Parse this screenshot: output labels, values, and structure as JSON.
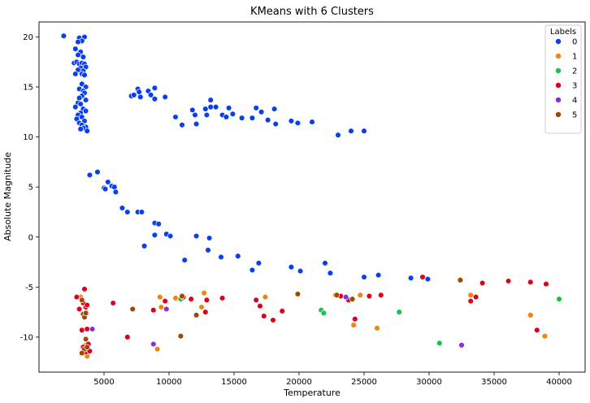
{
  "chart_data": {
    "type": "scatter",
    "title": "KMeans with 6 Clusters",
    "xlabel": "Temperature",
    "ylabel": "Absolute Magnitude",
    "xlim": [
      0,
      42000
    ],
    "ylim": [
      -13.5,
      21.5
    ],
    "xticks": [
      5000,
      10000,
      15000,
      20000,
      25000,
      30000,
      35000,
      40000
    ],
    "yticks": [
      -10,
      -5,
      0,
      5,
      10,
      15,
      20
    ],
    "grid": false,
    "legend": {
      "title": "Labels",
      "placement": "top-right"
    },
    "series": [
      {
        "name": "0",
        "color": "#0a3ff0",
        "points": [
          [
            1900,
            20.1
          ],
          [
            3100,
            19.9
          ],
          [
            3500,
            20.0
          ],
          [
            3300,
            19.6
          ],
          [
            3000,
            19.5
          ],
          [
            2800,
            18.8
          ],
          [
            3200,
            18.5
          ],
          [
            3000,
            18.2
          ],
          [
            3400,
            18.0
          ],
          [
            2700,
            17.4
          ],
          [
            2900,
            17.5
          ],
          [
            3100,
            17.3
          ],
          [
            3300,
            17.4
          ],
          [
            3500,
            17.3
          ],
          [
            3600,
            17.0
          ],
          [
            3200,
            16.9
          ],
          [
            3000,
            16.7
          ],
          [
            3400,
            16.6
          ],
          [
            2800,
            16.3
          ],
          [
            3300,
            16.3
          ],
          [
            3500,
            16.2
          ],
          [
            3300,
            15.3
          ],
          [
            3600,
            15.0
          ],
          [
            3100,
            14.8
          ],
          [
            3400,
            14.6
          ],
          [
            3500,
            14.4
          ],
          [
            3300,
            14.1
          ],
          [
            3100,
            13.9
          ],
          [
            3600,
            13.7
          ],
          [
            3000,
            13.4
          ],
          [
            3200,
            13.3
          ],
          [
            2800,
            13.0
          ],
          [
            3400,
            12.8
          ],
          [
            3600,
            12.6
          ],
          [
            3200,
            12.4
          ],
          [
            3000,
            12.2
          ],
          [
            3300,
            12.0
          ],
          [
            2900,
            11.8
          ],
          [
            3500,
            11.6
          ],
          [
            3100,
            11.4
          ],
          [
            3300,
            11.2
          ],
          [
            3600,
            11.0
          ],
          [
            3400,
            10.9
          ],
          [
            3200,
            10.8
          ],
          [
            3700,
            10.6
          ],
          [
            7100,
            14.1
          ],
          [
            7300,
            14.2
          ],
          [
            7600,
            14.8
          ],
          [
            7700,
            14.5
          ],
          [
            7800,
            14.0
          ],
          [
            8400,
            14.6
          ],
          [
            8600,
            14.2
          ],
          [
            8900,
            14.9
          ],
          [
            8900,
            13.8
          ],
          [
            9700,
            14.0
          ],
          [
            10500,
            12.0
          ],
          [
            11000,
            11.2
          ],
          [
            11800,
            12.7
          ],
          [
            12000,
            12.2
          ],
          [
            12100,
            11.3
          ],
          [
            12800,
            12.8
          ],
          [
            12900,
            12.2
          ],
          [
            13200,
            13.0
          ],
          [
            13200,
            13.7
          ],
          [
            13600,
            13.0
          ],
          [
            14100,
            12.2
          ],
          [
            14400,
            12.0
          ],
          [
            14600,
            12.9
          ],
          [
            14900,
            12.3
          ],
          [
            15600,
            11.9
          ],
          [
            16400,
            11.9
          ],
          [
            16700,
            12.9
          ],
          [
            17100,
            12.5
          ],
          [
            17600,
            11.7
          ],
          [
            18100,
            12.8
          ],
          [
            18200,
            11.3
          ],
          [
            19400,
            11.6
          ],
          [
            19900,
            11.4
          ],
          [
            21000,
            11.5
          ],
          [
            23000,
            10.2
          ],
          [
            24000,
            10.6
          ],
          [
            25000,
            10.6
          ],
          [
            3900,
            6.2
          ],
          [
            4500,
            6.5
          ],
          [
            5000,
            4.9
          ],
          [
            5100,
            4.8
          ],
          [
            5300,
            5.5
          ],
          [
            5600,
            5.1
          ],
          [
            5800,
            5.0
          ],
          [
            5900,
            4.5
          ],
          [
            6400,
            2.9
          ],
          [
            6800,
            2.5
          ],
          [
            7600,
            2.5
          ],
          [
            7900,
            2.5
          ],
          [
            8100,
            -0.9
          ],
          [
            8900,
            0.2
          ],
          [
            8900,
            1.4
          ],
          [
            9200,
            1.3
          ],
          [
            9800,
            0.3
          ],
          [
            10100,
            0.1
          ],
          [
            11200,
            -2.3
          ],
          [
            12100,
            0.1
          ],
          [
            13000,
            -1.3
          ],
          [
            13100,
            -0.1
          ],
          [
            14000,
            -2.0
          ],
          [
            15300,
            -1.9
          ],
          [
            16400,
            -3.3
          ],
          [
            16900,
            -2.6
          ],
          [
            19400,
            -3.0
          ],
          [
            20100,
            -3.4
          ],
          [
            22000,
            -2.6
          ],
          [
            22400,
            -3.6
          ],
          [
            25000,
            -4.0
          ],
          [
            26100,
            -3.8
          ],
          [
            28600,
            -4.1
          ],
          [
            29900,
            -4.2
          ]
        ]
      },
      {
        "name": "1",
        "color": "#f1830e",
        "points": [
          [
            3200,
            -6.0
          ],
          [
            3400,
            -6.5
          ],
          [
            3500,
            -7.6
          ],
          [
            3600,
            -10.8
          ],
          [
            3700,
            -11.9
          ],
          [
            9100,
            -11.2
          ],
          [
            9300,
            -6.0
          ],
          [
            9400,
            -7.0
          ],
          [
            10500,
            -6.1
          ],
          [
            12500,
            -7.0
          ],
          [
            12700,
            -5.6
          ],
          [
            17400,
            -6.0
          ],
          [
            22800,
            -5.8
          ],
          [
            24200,
            -8.8
          ],
          [
            24700,
            -5.8
          ],
          [
            26000,
            -9.1
          ],
          [
            33200,
            -5.8
          ],
          [
            37800,
            -7.8
          ],
          [
            38900,
            -9.9
          ]
        ]
      },
      {
        "name": "2",
        "color": "#17c247",
        "points": [
          [
            10900,
            -6.2
          ],
          [
            21700,
            -7.3
          ],
          [
            21900,
            -7.6
          ],
          [
            27700,
            -7.5
          ],
          [
            30800,
            -10.6
          ],
          [
            40000,
            -6.2
          ]
        ]
      },
      {
        "name": "3",
        "color": "#e0001b",
        "points": [
          [
            2900,
            -6.0
          ],
          [
            3100,
            -7.2
          ],
          [
            3300,
            -9.3
          ],
          [
            3400,
            -6.6
          ],
          [
            3500,
            -5.2
          ],
          [
            3600,
            -7.0
          ],
          [
            3700,
            -9.2
          ],
          [
            3400,
            -11.0
          ],
          [
            3600,
            -11.5
          ],
          [
            3900,
            -11.4
          ],
          [
            3700,
            -6.8
          ],
          [
            3800,
            -10.7
          ],
          [
            5700,
            -6.6
          ],
          [
            6800,
            -10.0
          ],
          [
            8800,
            -7.3
          ],
          [
            9700,
            -6.4
          ],
          [
            11100,
            -6.0
          ],
          [
            11700,
            -6.2
          ],
          [
            12900,
            -6.3
          ],
          [
            12800,
            -7.5
          ],
          [
            14100,
            -6.1
          ],
          [
            16700,
            -6.3
          ],
          [
            17000,
            -6.9
          ],
          [
            17300,
            -7.9
          ],
          [
            18000,
            -8.3
          ],
          [
            18700,
            -7.4
          ],
          [
            23200,
            -5.9
          ],
          [
            23800,
            -6.3
          ],
          [
            24300,
            -8.2
          ],
          [
            25400,
            -5.9
          ],
          [
            26300,
            -5.8
          ],
          [
            29500,
            -4.0
          ],
          [
            33200,
            -6.4
          ],
          [
            33600,
            -6.0
          ],
          [
            34100,
            -4.6
          ],
          [
            36100,
            -4.4
          ],
          [
            37800,
            -4.5
          ],
          [
            38300,
            -9.3
          ],
          [
            39000,
            -4.7
          ]
        ]
      },
      {
        "name": "4",
        "color": "#8b2be2",
        "points": [
          [
            4100,
            -9.2
          ],
          [
            8800,
            -10.7
          ],
          [
            9800,
            -7.2
          ],
          [
            23600,
            -6.0
          ],
          [
            32500,
            -10.8
          ]
        ]
      },
      {
        "name": "5",
        "color": "#9f4800",
        "points": [
          [
            3300,
            -6.3
          ],
          [
            3400,
            -7.7
          ],
          [
            3500,
            -8.0
          ],
          [
            3600,
            -7.6
          ],
          [
            3600,
            -10.2
          ],
          [
            3500,
            -11.2
          ],
          [
            3700,
            -11.0
          ],
          [
            3300,
            -11.6
          ],
          [
            7200,
            -7.2
          ],
          [
            10900,
            -9.9
          ],
          [
            11000,
            -5.9
          ],
          [
            12100,
            -7.8
          ],
          [
            19900,
            -5.7
          ],
          [
            22900,
            -5.8
          ],
          [
            24100,
            -6.2
          ],
          [
            32400,
            -4.3
          ]
        ]
      }
    ]
  }
}
